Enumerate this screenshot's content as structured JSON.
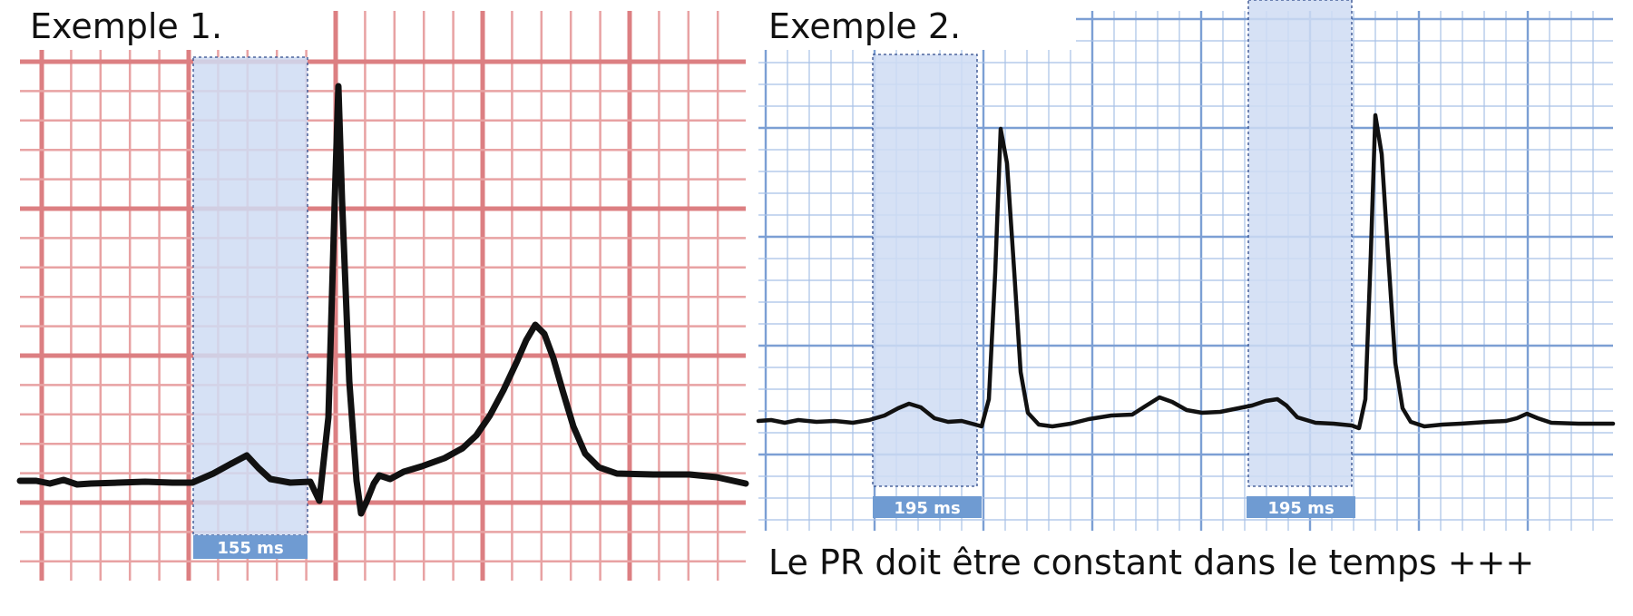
{
  "example1": {
    "title": "Exemple 1.",
    "pr_label": "155 ms",
    "grid_color": "#e8a2a3",
    "grid_major_color": "#dc7f82",
    "highlight_color": "#cfdcf3",
    "label_bg_color": "#6f9bd2"
  },
  "example2": {
    "title": "Exemple 2.",
    "pr_labels": [
      "195 ms",
      "195 ms"
    ],
    "caption": "Le PR doit être constant dans le temps +++",
    "grid_color": "#a8c1e6",
    "grid_major_color": "#7c9fd4",
    "highlight_color": "#cfdcf3",
    "label_bg_color": "#6f9bd2"
  }
}
